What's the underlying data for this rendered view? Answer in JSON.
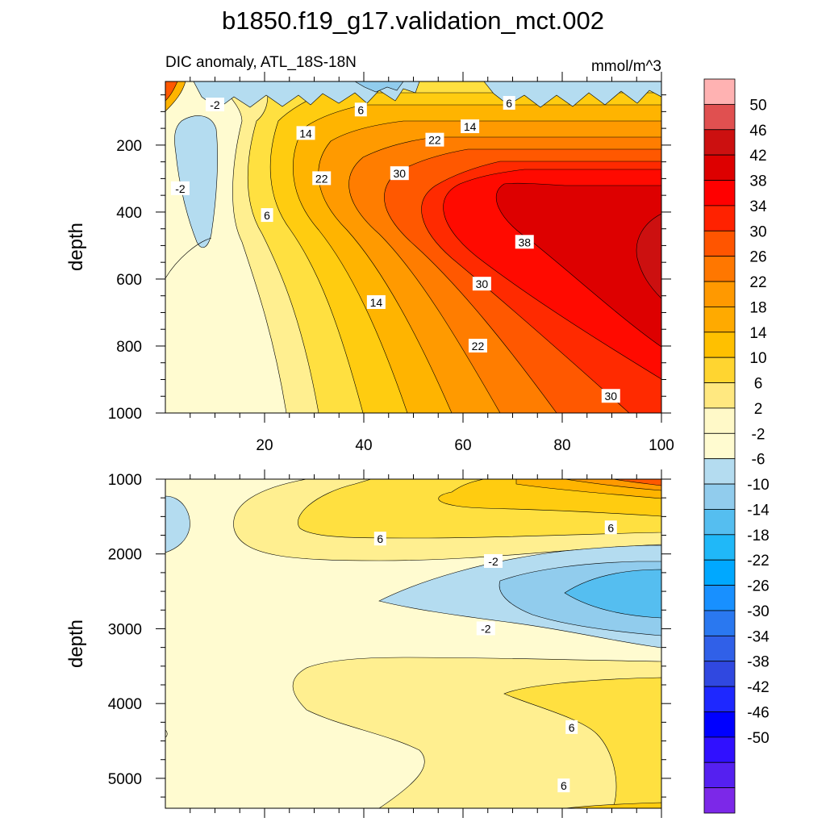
{
  "chart_data": {
    "type": "contour",
    "title": "b1850.f19_g17.validation_mct.002",
    "subtitle_left": "DIC anomaly, ATL_18S-18N",
    "subtitle_right": "mmol/m^3",
    "x_axis": {
      "range": [
        0,
        100
      ],
      "ticks": [
        "20",
        "40",
        "60",
        "80",
        "100"
      ],
      "tick_values": [
        20,
        40,
        60,
        80,
        100
      ],
      "label": ""
    },
    "panels": [
      {
        "name": "upper",
        "ylabel": "depth",
        "y_range": [
          10,
          1000
        ],
        "y_ticks": [
          "200",
          "400",
          "600",
          "800",
          "1000"
        ],
        "y_tick_values": [
          200,
          400,
          600,
          800,
          1000
        ],
        "contour_labels": [
          {
            "text": "-2",
            "x": 10.0,
            "y": 80
          },
          {
            "text": "-2",
            "x": 3.0,
            "y": 330
          },
          {
            "text": "6",
            "x": 39.4,
            "y": 95
          },
          {
            "text": "6",
            "x": 69.3,
            "y": 75
          },
          {
            "text": "6",
            "x": 20.5,
            "y": 410
          },
          {
            "text": "14",
            "x": 28.3,
            "y": 165
          },
          {
            "text": "14",
            "x": 61.4,
            "y": 145
          },
          {
            "text": "14",
            "x": 42.5,
            "y": 670
          },
          {
            "text": "22",
            "x": 54.3,
            "y": 185
          },
          {
            "text": "22",
            "x": 31.5,
            "y": 300
          },
          {
            "text": "22",
            "x": 63.0,
            "y": 800
          },
          {
            "text": "30",
            "x": 47.2,
            "y": 285
          },
          {
            "text": "30",
            "x": 63.8,
            "y": 615
          },
          {
            "text": "30",
            "x": 89.8,
            "y": 950
          },
          {
            "text": "38",
            "x": 72.4,
            "y": 490
          }
        ]
      },
      {
        "name": "lower",
        "ylabel": "depth",
        "y_range": [
          1000,
          5400
        ],
        "y_ticks": [
          "1000",
          "2000",
          "3000",
          "4000",
          "5000"
        ],
        "y_tick_values": [
          1000,
          2000,
          3000,
          4000,
          5000
        ],
        "contour_labels": [
          {
            "text": "6",
            "x": 43.3,
            "y": 1800
          },
          {
            "text": "6",
            "x": 89.8,
            "y": 1650
          },
          {
            "text": "-2",
            "x": 66.1,
            "y": 2100
          },
          {
            "text": "-2",
            "x": 64.6,
            "y": 3000
          },
          {
            "text": "6",
            "x": 81.9,
            "y": 4320
          },
          {
            "text": "6",
            "x": 80.3,
            "y": 5100
          }
        ]
      }
    ],
    "colorbar": {
      "levels": [
        "50",
        "46",
        "42",
        "38",
        "34",
        "30",
        "26",
        "22",
        "18",
        "14",
        "10",
        "6",
        "2",
        "-2",
        "-6",
        "-10",
        "-14",
        "-18",
        "-22",
        "-26",
        "-30",
        "-34",
        "-38",
        "-42",
        "-46",
        "-50"
      ],
      "colors_top_to_bottom": [
        "#ffb2b2",
        "#e05050",
        "#cc1010",
        "#dd0000",
        "#ff0000",
        "#ff2200",
        "#ff5500",
        "#ff7700",
        "#ff9900",
        "#ffaa00",
        "#ffc000",
        "#ffd530",
        "#ffe880",
        "#fff9c8",
        "#fffbd0",
        "#b4dcf0",
        "#91cced",
        "#55bef0",
        "#20b8f8",
        "#00a8ff",
        "#1890ff",
        "#2a78f0",
        "#3060e8",
        "#3048e0",
        "#1e28ff",
        "#0000ff",
        "#3010ff",
        "#5520f0",
        "#7c28e8"
      ]
    },
    "level_colors": {
      "le_-6": "#91cced",
      "-6_-2": "#b4dcf0",
      "-2_2": "#fffbd0",
      "2_6": "#ffef90",
      "6_10": "#ffe040",
      "10_14": "#ffcc10",
      "14_18": "#ffb400",
      "18_22": "#ff9a00",
      "22_26": "#ff7d00",
      "26_30": "#ff5800",
      "30_34": "#ff2a00",
      "34_38": "#ff0a00",
      "38_42": "#dd0000",
      "42_46": "#cc1010"
    }
  }
}
